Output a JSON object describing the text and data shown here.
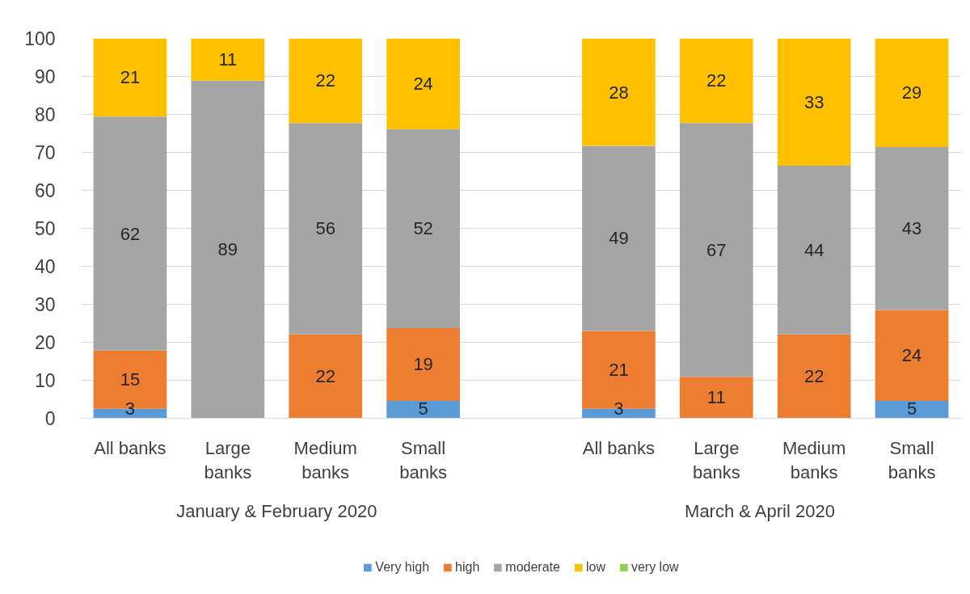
{
  "chart_data": {
    "type": "bar",
    "stacked": true,
    "categories": [
      "All banks",
      "Large banks",
      "Medium banks",
      "Small banks",
      null,
      "All banks",
      "Large banks",
      "Medium banks",
      "Small banks"
    ],
    "series": [
      {
        "name": "Very high",
        "color": "#5b9bd5",
        "values": [
          2.5,
          null,
          null,
          4.6,
          null,
          2.5,
          null,
          null,
          4.6
        ],
        "value_labels": [
          "3",
          null,
          null,
          "5",
          null,
          "3",
          null,
          null,
          "5"
        ]
      },
      {
        "name": "high",
        "color": "#ed7d31",
        "values": [
          15.3,
          null,
          22.1,
          19.1,
          null,
          20.5,
          10.9,
          22.1,
          23.9
        ],
        "value_labels": [
          "15",
          null,
          "22",
          "19",
          null,
          "21",
          "11",
          "22",
          "24"
        ]
      },
      {
        "name": "moderate",
        "color": "#a5a5a5",
        "values": [
          61.6,
          88.9,
          55.6,
          52.4,
          null,
          48.7,
          66.8,
          44.4,
          42.9
        ],
        "value_labels": [
          "62",
          "89",
          "56",
          "52",
          null,
          "49",
          "67",
          "44",
          "43"
        ]
      },
      {
        "name": "low",
        "color": "#ffc000",
        "values": [
          20.6,
          11.1,
          22.3,
          23.9,
          null,
          28.3,
          22.3,
          33.5,
          28.6
        ],
        "value_labels": [
          "21",
          "11",
          "22",
          "24",
          null,
          "28",
          "22",
          "33",
          "29"
        ]
      },
      {
        "name": "very low",
        "color": "#92d050",
        "values": [
          null,
          null,
          null,
          null,
          null,
          null,
          null,
          null,
          null
        ]
      }
    ],
    "ylim": [
      0,
      100
    ],
    "yticks": [
      0,
      10,
      20,
      30,
      40,
      50,
      60,
      70,
      80,
      90,
      100
    ],
    "grid": "y",
    "legend": "bottom",
    "annotations": [
      "January & February 2020",
      "March  & April  2020"
    ]
  }
}
